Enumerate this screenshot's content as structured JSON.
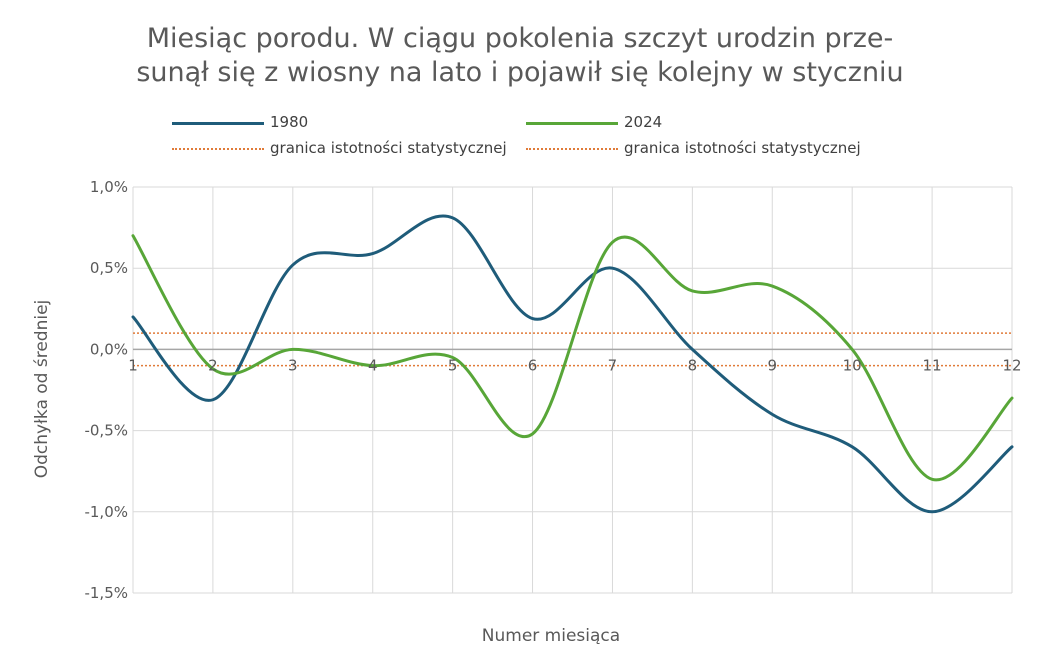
{
  "chart_data": {
    "type": "line",
    "title_line1": "Miesiąc porodu. W ciągu pokolenia szczyt urodzin prze-",
    "title_line2": "sunął się z wiosny na lato i pojawił się kolejny w styczniu",
    "xlabel": "Numer miesiąca",
    "ylabel": "Odchyłka od średniej",
    "x": [
      1,
      2,
      3,
      4,
      5,
      6,
      7,
      8,
      9,
      10,
      11,
      12
    ],
    "x_tick_labels": [
      "1",
      "2",
      "3",
      "4",
      "5",
      "6",
      "7",
      "8",
      "9",
      "10",
      "11",
      "12"
    ],
    "y_ticks": [
      1.0,
      0.5,
      0.0,
      -0.5,
      -1.0,
      -1.5
    ],
    "y_tick_labels": [
      "1,0%",
      "0,5%",
      "0,0%",
      "-0,5%",
      "-1,0%",
      "-1,5%"
    ],
    "ylim": [
      -1.5,
      1.0
    ],
    "xlim": [
      1,
      12
    ],
    "grid": true,
    "legend_position": "top",
    "series": [
      {
        "name": "1980",
        "color": "#1f5c7a",
        "values": [
          0.2,
          -0.31,
          0.52,
          0.59,
          0.81,
          0.19,
          0.5,
          0.0,
          -0.4,
          -0.6,
          -1.0,
          -0.6
        ]
      },
      {
        "name": "2024",
        "color": "#58a638",
        "values": [
          0.7,
          -0.12,
          0.0,
          -0.1,
          -0.05,
          -0.52,
          0.66,
          0.36,
          0.39,
          0.0,
          -0.8,
          -0.3
        ]
      }
    ],
    "threshold_lines": [
      {
        "name": "granica istotności statystycznej",
        "value": 0.1,
        "color": "#e07b39"
      },
      {
        "name": "granica istotności statystycznej",
        "value": -0.1,
        "color": "#e07b39"
      }
    ]
  }
}
